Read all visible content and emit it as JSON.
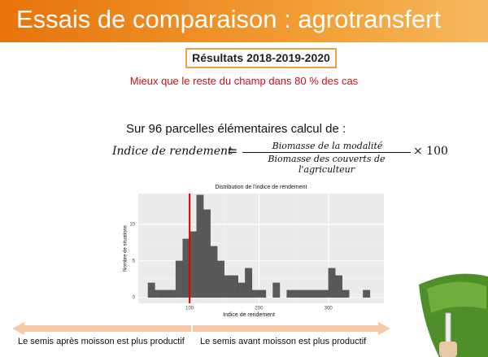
{
  "header": {
    "title": "Essais de comparaison : agrotransfert"
  },
  "badge": "Résultats 2018-2019-2020",
  "highlight": "Mieux que le reste du champ dans 80 % des cas",
  "intro": "Sur 96 parcelles élémentaires calcul de :",
  "formula": {
    "lhs": "Indice de rendement",
    "equals": "=",
    "numerator": "Biomasse de la modalité",
    "denominator": "Biomasse des couverts de l'agriculteur",
    "factor": "× 100"
  },
  "chart_data": {
    "type": "histogram",
    "title": "Distribution de l'indice de rendement",
    "x_label": "Indice de rendement",
    "y_label": "Nombre de situations",
    "bins": [
      40,
      50,
      60,
      70,
      80,
      90,
      100,
      110,
      120,
      130,
      140,
      150,
      160,
      170,
      180,
      190,
      200,
      210,
      220,
      230,
      240,
      250,
      260,
      270,
      280,
      290,
      300,
      310,
      320,
      330,
      340,
      350,
      360
    ],
    "values": [
      2,
      1,
      1,
      1,
      5,
      8,
      9,
      14,
      12,
      7,
      5,
      3,
      3,
      2,
      4,
      1,
      1,
      0,
      2,
      0,
      1,
      1,
      1,
      1,
      1,
      1,
      4,
      3,
      1,
      0,
      0,
      1
    ],
    "color": "#595959",
    "reference_line": {
      "value": 100,
      "color": "#e00000"
    },
    "xlim": [
      26,
      380
    ],
    "ylim": [
      -0.8,
      14.2
    ],
    "xticks": [
      100,
      200,
      300
    ],
    "yticks": [
      0,
      5,
      10
    ],
    "grid": true
  },
  "arrows": {
    "left": "Le semis après moisson est plus productif",
    "right": "Le semis avant moisson est plus productif"
  }
}
